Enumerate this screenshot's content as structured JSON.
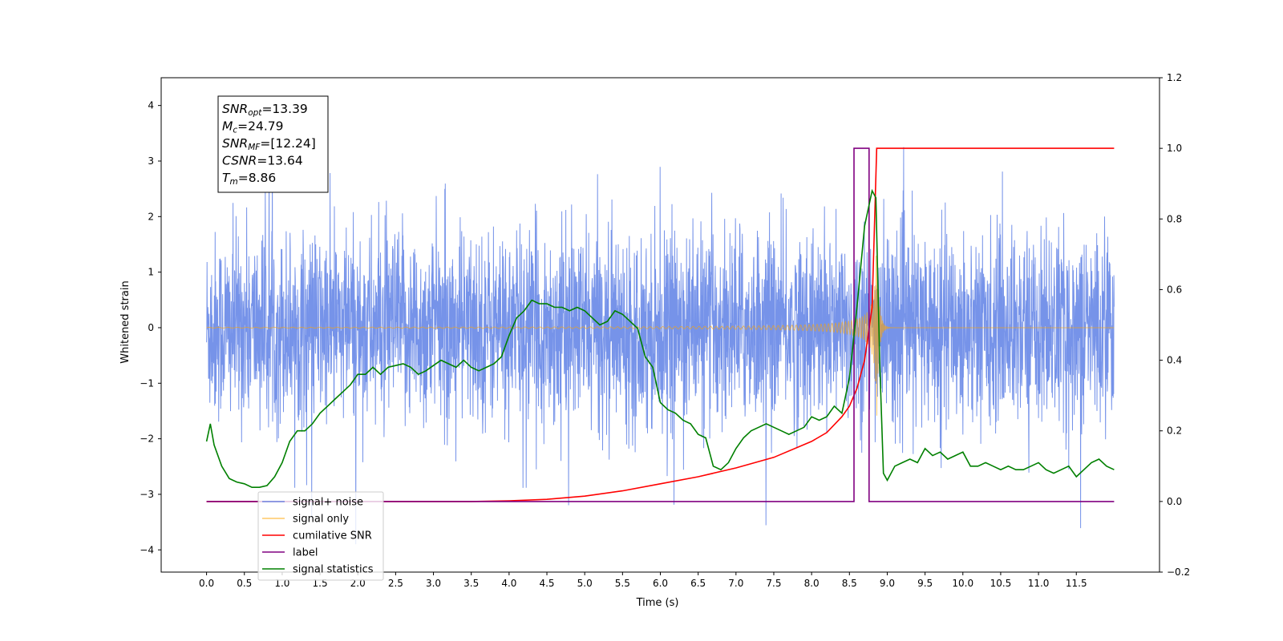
{
  "chart_data": {
    "type": "line",
    "title": "",
    "xlabel": "Time (s)",
    "ylabel": "Whitened strain",
    "xlim": [
      -0.6,
      12.6
    ],
    "ylim": [
      -4.4,
      4.5
    ],
    "y2lim": [
      -0.2,
      1.2
    ],
    "x_ticks": [
      "0.0",
      "0.5",
      "1.0",
      "1.5",
      "2.0",
      "2.5",
      "3.0",
      "3.5",
      "4.0",
      "4.5",
      "5.0",
      "5.5",
      "6.0",
      "6.5",
      "7.0",
      "7.5",
      "8.0",
      "8.5",
      "9.0",
      "9.5",
      "10.0",
      "10.5",
      "11.0",
      "11.5"
    ],
    "y_ticks": [
      "4",
      "3",
      "2",
      "1",
      "0",
      "−1",
      "−2",
      "−3",
      "−4"
    ],
    "y2_ticks": [
      "1.2",
      "1.0",
      "0.8",
      "0.6",
      "0.4",
      "0.2",
      "0.0",
      "−0.2"
    ],
    "grid": false,
    "legend_position": "lower-left",
    "annotation": {
      "lines": [
        {
          "var": "SNR",
          "sub": "opt",
          "value": "=13.39"
        },
        {
          "var": "M",
          "sub": "c",
          "value": "=24.79"
        },
        {
          "var": "SNR",
          "sub": "MF",
          "value": "=[12.24]"
        },
        {
          "var": "CSNR",
          "sub": "",
          "value": "=13.64"
        },
        {
          "var": "T",
          "sub": "m",
          "value": "=8.86"
        }
      ]
    },
    "series": [
      {
        "name": "signal+ noise",
        "color": "#4169e1",
        "axis": "left",
        "description_values": {
          "x_start": 0.0,
          "x_end": 12.0,
          "noise_std": 0.85,
          "peak": 3.8,
          "trough": -3.9
        }
      },
      {
        "name": "signal only",
        "color": "#ffa500",
        "axis": "left",
        "chirp": {
          "x_start": 0.0,
          "x_end": 12.0,
          "merger_time": 8.86,
          "peak_amplitude": 1.7
        }
      },
      {
        "name": "cumilative SNR",
        "color": "#ff0000",
        "axis": "right",
        "x": [
          0.0,
          3.5,
          4.0,
          4.5,
          5.0,
          5.5,
          6.0,
          6.5,
          7.0,
          7.5,
          8.0,
          8.2,
          8.4,
          8.5,
          8.6,
          8.7,
          8.8,
          8.86,
          12.0
        ],
        "y": [
          0.0,
          0.0,
          0.002,
          0.006,
          0.015,
          0.03,
          0.05,
          0.07,
          0.095,
          0.125,
          0.17,
          0.195,
          0.24,
          0.27,
          0.32,
          0.4,
          0.55,
          1.0,
          1.0
        ]
      },
      {
        "name": "label",
        "color": "#800080",
        "axis": "right",
        "x": [
          0.0,
          8.56,
          8.56,
          8.76,
          8.76,
          12.0
        ],
        "y": [
          0.0,
          0.0,
          1.0,
          1.0,
          0.0,
          0.0
        ]
      },
      {
        "name": "signal statistics",
        "color": "#008000",
        "axis": "right",
        "x": [
          0.0,
          0.05,
          0.1,
          0.2,
          0.3,
          0.4,
          0.5,
          0.6,
          0.7,
          0.8,
          0.9,
          1.0,
          1.1,
          1.2,
          1.3,
          1.4,
          1.5,
          1.6,
          1.7,
          1.8,
          1.9,
          2.0,
          2.1,
          2.2,
          2.3,
          2.4,
          2.5,
          2.6,
          2.7,
          2.8,
          2.9,
          3.0,
          3.1,
          3.2,
          3.3,
          3.4,
          3.5,
          3.6,
          3.7,
          3.8,
          3.9,
          4.0,
          4.1,
          4.2,
          4.3,
          4.4,
          4.5,
          4.6,
          4.7,
          4.8,
          4.9,
          5.0,
          5.1,
          5.2,
          5.3,
          5.4,
          5.5,
          5.6,
          5.7,
          5.8,
          5.9,
          6.0,
          6.1,
          6.2,
          6.3,
          6.4,
          6.5,
          6.6,
          6.7,
          6.8,
          6.9,
          7.0,
          7.1,
          7.2,
          7.3,
          7.4,
          7.5,
          7.6,
          7.7,
          7.8,
          7.9,
          8.0,
          8.1,
          8.2,
          8.3,
          8.4,
          8.5,
          8.6,
          8.7,
          8.8,
          8.85,
          8.9,
          8.95,
          9.0,
          9.1,
          9.2,
          9.3,
          9.4,
          9.5,
          9.6,
          9.7,
          9.8,
          9.9,
          10.0,
          10.1,
          10.2,
          10.3,
          10.4,
          10.5,
          10.6,
          10.7,
          10.8,
          10.9,
          11.0,
          11.1,
          11.2,
          11.3,
          11.4,
          11.5,
          11.6,
          11.7,
          11.8,
          11.9,
          12.0
        ],
        "y": [
          0.17,
          0.22,
          0.16,
          0.1,
          0.065,
          0.055,
          0.05,
          0.04,
          0.04,
          0.045,
          0.07,
          0.11,
          0.17,
          0.2,
          0.2,
          0.22,
          0.25,
          0.27,
          0.29,
          0.31,
          0.33,
          0.36,
          0.36,
          0.38,
          0.36,
          0.38,
          0.385,
          0.39,
          0.38,
          0.36,
          0.37,
          0.385,
          0.4,
          0.39,
          0.38,
          0.4,
          0.38,
          0.37,
          0.38,
          0.39,
          0.41,
          0.47,
          0.52,
          0.54,
          0.57,
          0.56,
          0.56,
          0.55,
          0.55,
          0.54,
          0.55,
          0.54,
          0.52,
          0.5,
          0.51,
          0.54,
          0.53,
          0.51,
          0.49,
          0.41,
          0.38,
          0.28,
          0.26,
          0.25,
          0.23,
          0.22,
          0.19,
          0.18,
          0.1,
          0.09,
          0.11,
          0.15,
          0.18,
          0.2,
          0.21,
          0.22,
          0.21,
          0.2,
          0.19,
          0.2,
          0.21,
          0.24,
          0.23,
          0.24,
          0.27,
          0.25,
          0.35,
          0.55,
          0.78,
          0.88,
          0.86,
          0.4,
          0.08,
          0.06,
          0.1,
          0.11,
          0.12,
          0.11,
          0.15,
          0.13,
          0.14,
          0.12,
          0.13,
          0.14,
          0.1,
          0.1,
          0.11,
          0.1,
          0.09,
          0.1,
          0.09,
          0.09,
          0.1,
          0.11,
          0.09,
          0.08,
          0.09,
          0.1,
          0.07,
          0.09,
          0.11,
          0.12,
          0.1,
          0.09
        ]
      }
    ]
  }
}
